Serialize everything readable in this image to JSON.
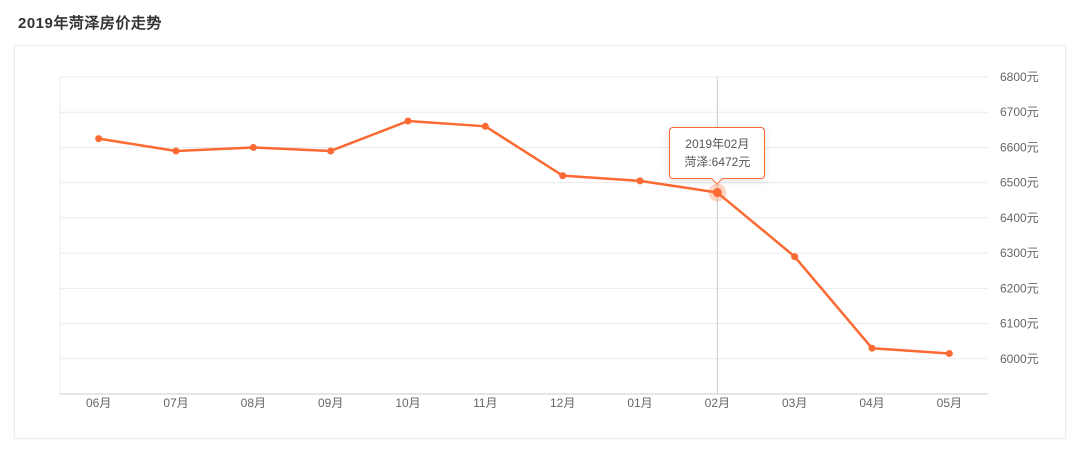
{
  "page": {
    "title": "2019年菏泽房价走势"
  },
  "colors": {
    "line": "#fa6a32",
    "grid": "#ebebeb",
    "axis": "#cccccc",
    "label": "#666666",
    "tick_label": "#666666",
    "highlight_line": "#cccccc",
    "tooltip_border": "#fa6a32"
  },
  "chart_data": {
    "type": "line",
    "title": "2019年菏泽房价走势",
    "categories": [
      "06月",
      "07月",
      "08月",
      "09月",
      "10月",
      "11月",
      "12月",
      "01月",
      "02月",
      "03月",
      "04月",
      "05月"
    ],
    "series": [
      {
        "name": "菏泽",
        "values": [
          6625,
          6590,
          6600,
          6590,
          6675,
          6660,
          6520,
          6505,
          6472,
          6290,
          6030,
          6015
        ]
      }
    ],
    "ylim": [
      5900,
      6800
    ],
    "yticks": [
      6000,
      6100,
      6200,
      6300,
      6400,
      6500,
      6600,
      6700,
      6800
    ],
    "ytick_suffix": "元",
    "grid": true,
    "legend_position": "none",
    "highlight": {
      "index": 8,
      "tooltip_line1": "2019年02月",
      "tooltip_line2": "菏泽:6472元"
    }
  }
}
